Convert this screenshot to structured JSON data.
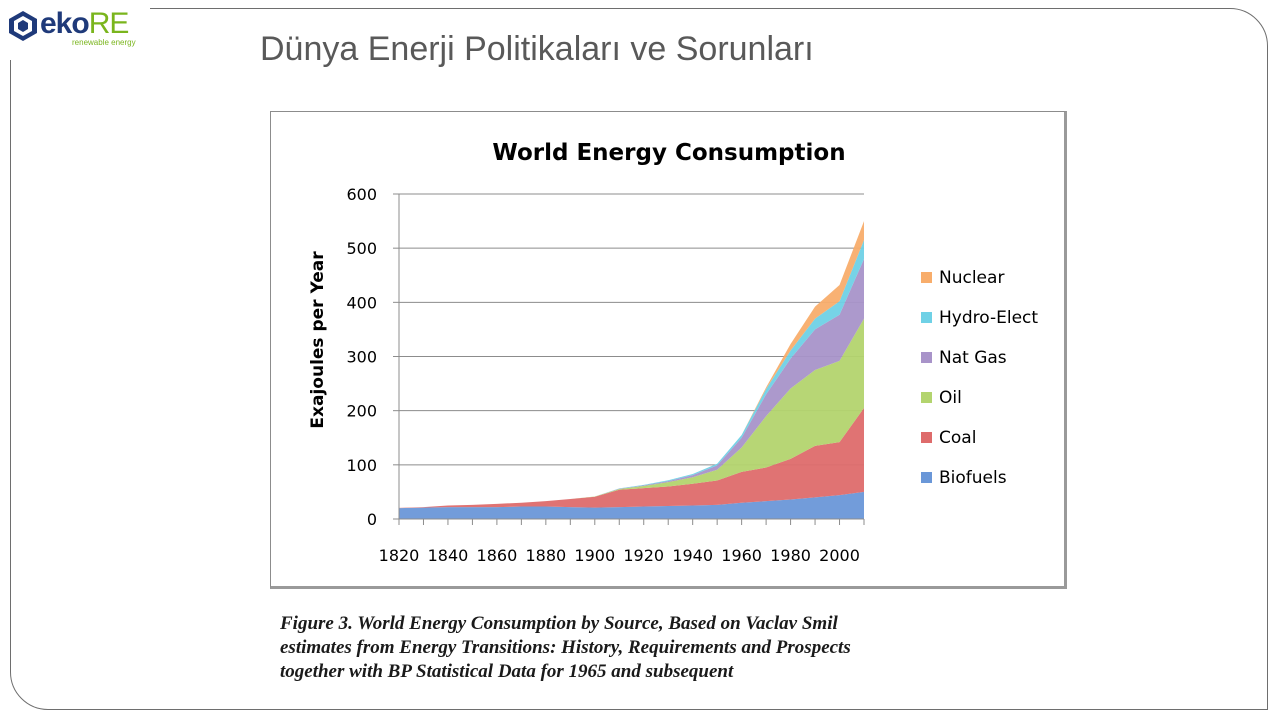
{
  "slide": {
    "title": "Dünya Enerji Politikaları ve Sorunları",
    "caption_lines": [
      "Figure 3. World Energy Consumption by Source, Based on Vaclav Smil",
      "estimates from Energy Transitions: History, Requirements and Prospects",
      "together with BP Statistical Data for 1965 and subsequent"
    ]
  },
  "logo": {
    "word_main": "eko",
    "word_accent": "RE",
    "tagline": "renewable energy"
  },
  "colors": {
    "brand_blue": "#1f3a7a",
    "brand_green": "#7ab51d",
    "biofuels": "#6a97d8",
    "coal": "#de6b6b",
    "oil": "#b3d46e",
    "nat_gas": "#a893c9",
    "hydro": "#6fd1e6",
    "nuclear": "#f8ad6b"
  },
  "chart_data": {
    "type": "area",
    "stacked": true,
    "title": "World Energy Consumption",
    "xlabel": "",
    "ylabel": "Exajoules per Year",
    "xlim": [
      1820,
      2010
    ],
    "ylim": [
      0,
      600
    ],
    "x_ticks": [
      1820,
      1840,
      1860,
      1880,
      1900,
      1920,
      1940,
      1960,
      1980,
      2000
    ],
    "y_ticks": [
      0,
      100,
      200,
      300,
      400,
      500,
      600
    ],
    "grid": true,
    "legend_position": "right",
    "x": [
      1820,
      1830,
      1840,
      1850,
      1860,
      1870,
      1880,
      1890,
      1900,
      1910,
      1920,
      1930,
      1940,
      1950,
      1960,
      1970,
      1980,
      1990,
      2000,
      2010
    ],
    "series": [
      {
        "name": "Biofuels",
        "color": "#6a97d8",
        "values": [
          20,
          21,
          22,
          22,
          22,
          23,
          23,
          22,
          21,
          22,
          23,
          24,
          25,
          26,
          30,
          33,
          36,
          40,
          44,
          50
        ]
      },
      {
        "name": "Coal",
        "color": "#de6b6b",
        "values": [
          0.5,
          1,
          3,
          4,
          6,
          7,
          10,
          15,
          20,
          32,
          34,
          36,
          40,
          45,
          57,
          62,
          75,
          95,
          98,
          155
        ]
      },
      {
        "name": "Oil",
        "color": "#b3d46e",
        "values": [
          0,
          0,
          0,
          0,
          0,
          0,
          0,
          0,
          0.5,
          1.5,
          4,
          8,
          12,
          20,
          45,
          95,
          130,
          140,
          150,
          165
        ]
      },
      {
        "name": "Nat Gas",
        "color": "#a893c9",
        "values": [
          0,
          0,
          0,
          0,
          0,
          0,
          0,
          0,
          0,
          0.5,
          1,
          2,
          4,
          8,
          18,
          40,
          55,
          75,
          85,
          110
        ]
      },
      {
        "name": "Hydro-Elect",
        "color": "#6fd1e6",
        "values": [
          0,
          0,
          0,
          0,
          0,
          0,
          0,
          0,
          0,
          0.5,
          1,
          1.5,
          2,
          3,
          5,
          10,
          15,
          20,
          25,
          35
        ]
      },
      {
        "name": "Nuclear",
        "color": "#f8ad6b",
        "values": [
          0,
          0,
          0,
          0,
          0,
          0,
          0,
          0,
          0,
          0,
          0,
          0,
          0,
          0,
          0,
          3,
          12,
          22,
          30,
          35
        ]
      }
    ]
  }
}
